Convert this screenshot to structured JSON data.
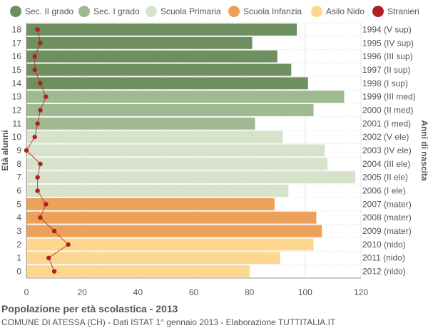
{
  "chart_data": {
    "type": "bar",
    "orientation": "horizontal",
    "title": "Popolazione per età scolastica - 2013",
    "subtitle": "COMUNE DI ATESSA (CH) - Dati ISTAT 1° gennaio 2013 - Elaborazione TUTTITALIA.IT",
    "ylabel": "Età alunni",
    "ylabel_right": "Anni di nascita",
    "xlim": [
      0,
      120
    ],
    "x_ticks": [
      "0",
      "20",
      "40",
      "60",
      "80",
      "100",
      "120"
    ],
    "grid": true,
    "legend": [
      {
        "name": "Sec. II grado",
        "color": "#6e8f5e"
      },
      {
        "name": "Sec. I grado",
        "color": "#9fba91"
      },
      {
        "name": "Scuola Primaria",
        "color": "#d6e2c9"
      },
      {
        "name": "Scuola Infanzia",
        "color": "#eda05a"
      },
      {
        "name": "Asilo Nido",
        "color": "#fdd78f"
      },
      {
        "name": "Stranieri",
        "color": "#b01f1f"
      }
    ],
    "legend_position": "top",
    "bars": [
      {
        "age": "18",
        "birth": "1994 (V sup)",
        "value": 97,
        "group": 0
      },
      {
        "age": "17",
        "birth": "1995 (IV sup)",
        "value": 81,
        "group": 0
      },
      {
        "age": "16",
        "birth": "1996 (III sup)",
        "value": 90,
        "group": 0
      },
      {
        "age": "15",
        "birth": "1997 (II sup)",
        "value": 95,
        "group": 0
      },
      {
        "age": "14",
        "birth": "1998 (I sup)",
        "value": 101,
        "group": 0
      },
      {
        "age": "13",
        "birth": "1999 (III med)",
        "value": 114,
        "group": 1
      },
      {
        "age": "12",
        "birth": "2000 (II med)",
        "value": 103,
        "group": 1
      },
      {
        "age": "11",
        "birth": "2001 (I med)",
        "value": 82,
        "group": 1
      },
      {
        "age": "10",
        "birth": "2002 (V ele)",
        "value": 92,
        "group": 2
      },
      {
        "age": "9",
        "birth": "2003 (IV ele)",
        "value": 107,
        "group": 2
      },
      {
        "age": "8",
        "birth": "2004 (III ele)",
        "value": 108,
        "group": 2
      },
      {
        "age": "7",
        "birth": "2005 (II ele)",
        "value": 118,
        "group": 2
      },
      {
        "age": "6",
        "birth": "2006 (I ele)",
        "value": 94,
        "group": 2
      },
      {
        "age": "5",
        "birth": "2007 (mater)",
        "value": 89,
        "group": 3
      },
      {
        "age": "4",
        "birth": "2008 (mater)",
        "value": 104,
        "group": 3
      },
      {
        "age": "3",
        "birth": "2009 (mater)",
        "value": 106,
        "group": 3
      },
      {
        "age": "2",
        "birth": "2010 (nido)",
        "value": 103,
        "group": 4
      },
      {
        "age": "1",
        "birth": "2011 (nido)",
        "value": 91,
        "group": 4
      },
      {
        "age": "0",
        "birth": "2012 (nido)",
        "value": 80,
        "group": 4
      }
    ],
    "stranieri": [
      4,
      5,
      3,
      3,
      5,
      7,
      5,
      4,
      3,
      0,
      5,
      4,
      4,
      7,
      5,
      10,
      15,
      8,
      10
    ]
  }
}
